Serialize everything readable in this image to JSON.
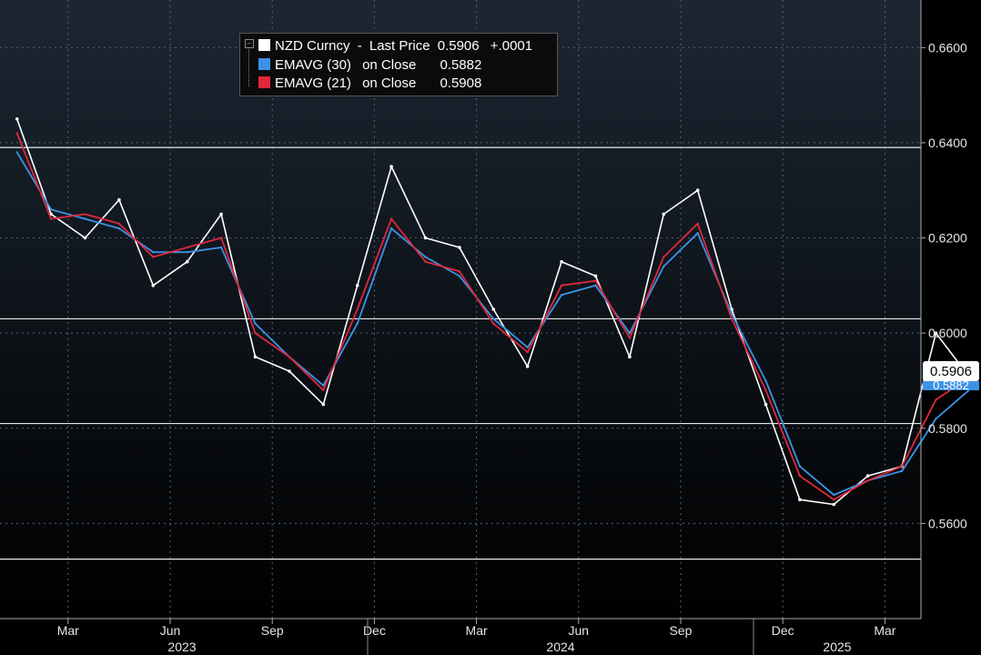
{
  "chart_data": {
    "type": "line",
    "y_axis_position": "right",
    "ylim": [
      0.54,
      0.67
    ],
    "y_ticks": [
      "0.5600",
      "0.5800",
      "0.6000",
      "0.6200",
      "0.6400",
      "0.6600"
    ],
    "x_tick_labels": [
      "Mar",
      "Jun",
      "Sep",
      "Dec",
      "Mar",
      "Jun",
      "Sep",
      "Dec",
      "Mar"
    ],
    "year_labels": [
      "2023",
      "2024",
      "2025"
    ],
    "horizontal_levels": [
      0.639,
      0.603,
      0.581,
      0.5525
    ],
    "grid": true,
    "legend_position": "top-left",
    "series": [
      {
        "name": "NZD Curncy - Last Price",
        "legend_value": "0.5906",
        "legend_change": "+.0001",
        "color": "#ffffff",
        "x": [
          "2023-01",
          "2023-02",
          "2023-03",
          "2023-04",
          "2023-05",
          "2023-06",
          "2023-07",
          "2023-08",
          "2023-09",
          "2023-10",
          "2023-11",
          "2023-12",
          "2024-01",
          "2024-02",
          "2024-03",
          "2024-04",
          "2024-05",
          "2024-06",
          "2024-07",
          "2024-08",
          "2024-09",
          "2024-10",
          "2024-11",
          "2024-12",
          "2025-01",
          "2025-02",
          "2025-03",
          "2025-04",
          "2025-05"
        ],
        "values": [
          0.645,
          0.625,
          0.62,
          0.628,
          0.61,
          0.615,
          0.625,
          0.595,
          0.592,
          0.585,
          0.61,
          0.635,
          0.62,
          0.618,
          0.605,
          0.593,
          0.615,
          0.612,
          0.595,
          0.625,
          0.63,
          0.605,
          0.585,
          0.565,
          0.564,
          0.57,
          0.572,
          0.6,
          0.5906
        ]
      },
      {
        "name": "EMAVG (30) on Close",
        "legend_value": "0.5882",
        "color": "#3c93e6",
        "x": [
          "2023-01",
          "2023-02",
          "2023-03",
          "2023-04",
          "2023-05",
          "2023-06",
          "2023-07",
          "2023-08",
          "2023-09",
          "2023-10",
          "2023-11",
          "2023-12",
          "2024-01",
          "2024-02",
          "2024-03",
          "2024-04",
          "2024-05",
          "2024-06",
          "2024-07",
          "2024-08",
          "2024-09",
          "2024-10",
          "2024-11",
          "2024-12",
          "2025-01",
          "2025-02",
          "2025-03",
          "2025-04",
          "2025-05"
        ],
        "values": [
          0.638,
          0.626,
          0.624,
          0.622,
          0.617,
          0.617,
          0.618,
          0.602,
          0.595,
          0.589,
          0.602,
          0.622,
          0.616,
          0.612,
          0.603,
          0.597,
          0.608,
          0.61,
          0.6,
          0.614,
          0.621,
          0.604,
          0.59,
          0.572,
          0.566,
          0.569,
          0.571,
          0.582,
          0.5882
        ]
      },
      {
        "name": "EMAVG (21) on Close",
        "legend_value": "0.5908",
        "color": "#e0283c",
        "x": [
          "2023-01",
          "2023-02",
          "2023-03",
          "2023-04",
          "2023-05",
          "2023-06",
          "2023-07",
          "2023-08",
          "2023-09",
          "2023-10",
          "2023-11",
          "2023-12",
          "2024-01",
          "2024-02",
          "2024-03",
          "2024-04",
          "2024-05",
          "2024-06",
          "2024-07",
          "2024-08",
          "2024-09",
          "2024-10",
          "2024-11",
          "2024-12",
          "2025-01",
          "2025-02",
          "2025-03",
          "2025-04",
          "2025-05"
        ],
        "values": [
          0.642,
          0.624,
          0.625,
          0.623,
          0.616,
          0.618,
          0.62,
          0.6,
          0.595,
          0.588,
          0.605,
          0.624,
          0.615,
          0.613,
          0.602,
          0.596,
          0.61,
          0.611,
          0.599,
          0.616,
          0.623,
          0.603,
          0.588,
          0.57,
          0.565,
          0.569,
          0.572,
          0.586,
          0.5908
        ]
      }
    ]
  },
  "legend": {
    "row1": {
      "label": "NZD Curncy",
      "dash": "-",
      "field": "Last Price",
      "value": "0.5906",
      "change": "+.0001"
    },
    "row2": {
      "label": "EMAVG (30)",
      "field": "on Close",
      "value": "0.5882"
    },
    "row3": {
      "label": "EMAVG (21)",
      "field": "on Close",
      "value": "0.5908"
    }
  },
  "price_tags": {
    "last": "0.5906",
    "ema30": "0.5882"
  }
}
